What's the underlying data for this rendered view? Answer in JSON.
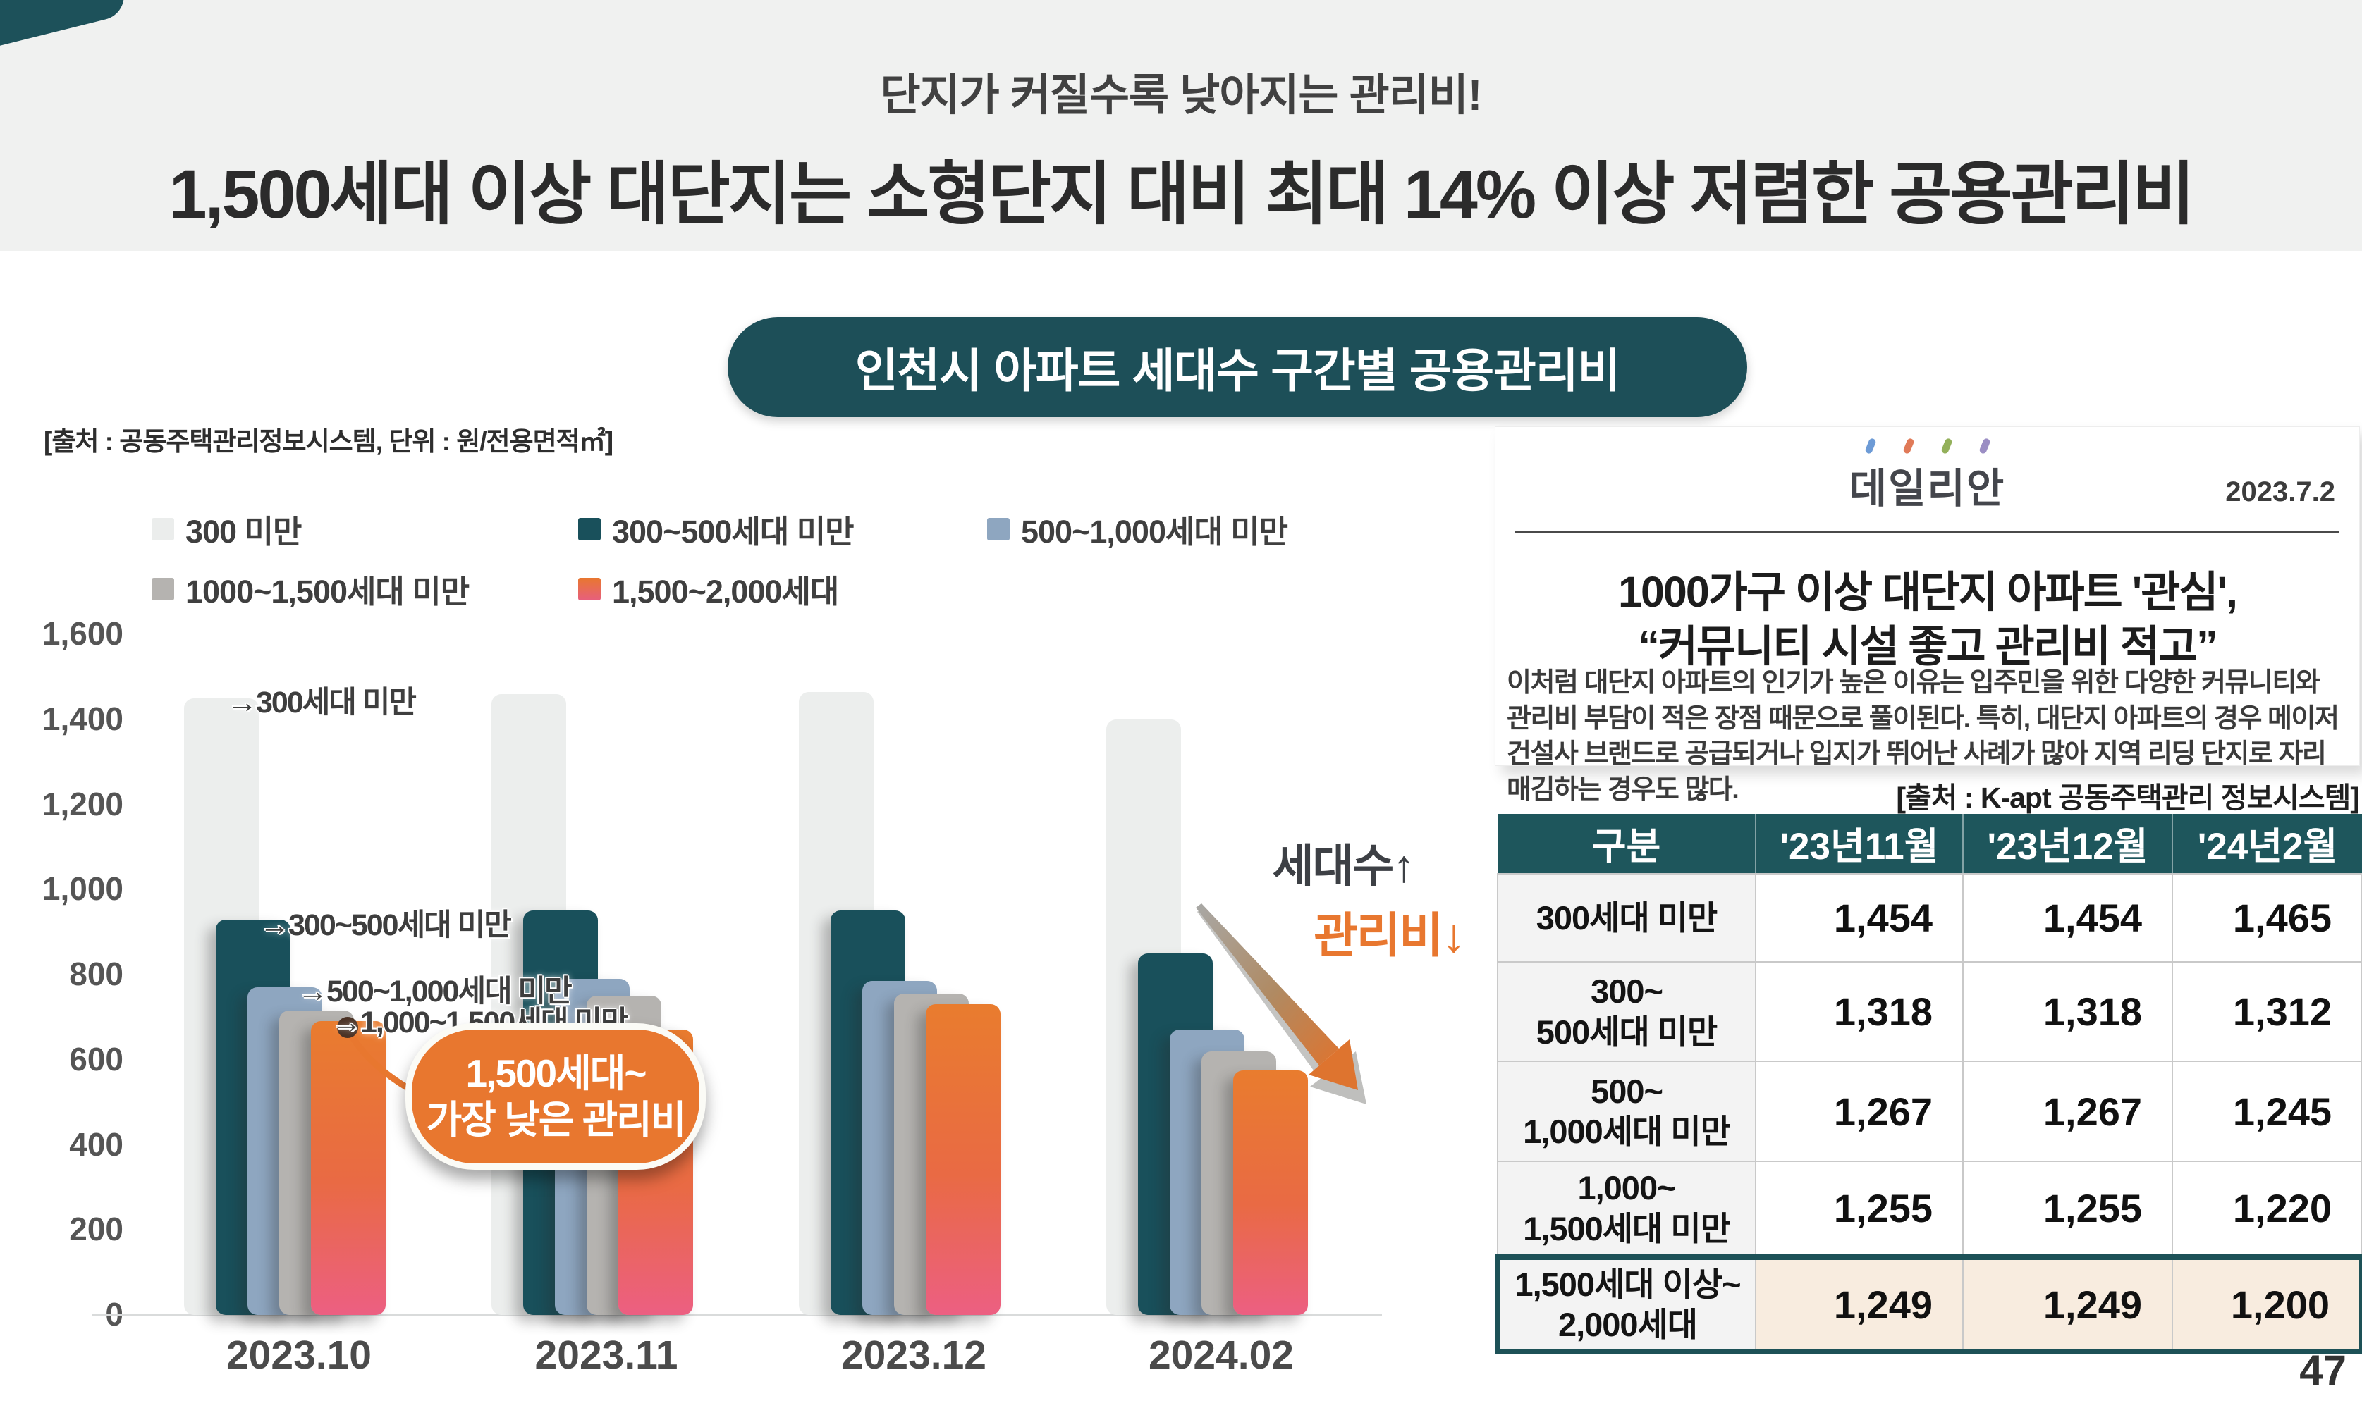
{
  "slide": {
    "subtitle": "단지가 커질수록 낮아지는 관리비!",
    "title": "1,500세대 이상 대단지는 소형단지 대비 최대 14% 이상 저렴한 공용관리비",
    "section_badge": "인천시 아파트 세대수 구간별 공용관리비",
    "page_number": "47"
  },
  "chart": {
    "source_note": "[출처 : 공동주택관리정보시스템, 단위 : 원/전용면적㎡]",
    "y_ticks": [
      "1,600",
      "1,400",
      "1,200",
      "1,000",
      "800",
      "600",
      "400",
      "200",
      "0"
    ],
    "bar_annotations": [
      "→300세대 미만",
      "→300~500세대 미만",
      "→500~1,000세대 미만",
      "→1,000~1,500세대 미만"
    ],
    "callout": {
      "line1": "1,500세대~",
      "line2": "가장 낮은 관리비"
    },
    "trend_up_label": "세대수↑",
    "trend_down_label": "관리비↓"
  },
  "chart_data": {
    "type": "bar",
    "title": "인천시 아파트 세대수 구간별 공용관리비",
    "ylabel": "원/전용면적㎡",
    "categories": [
      "2023.10",
      "2023.11",
      "2023.12",
      "2024.02"
    ],
    "series": [
      {
        "name": "300 미만",
        "color": "#ebedec",
        "values": [
          1450,
          1460,
          1465,
          1400
        ]
      },
      {
        "name": "300~500세대 미만",
        "color": "#19505b",
        "values": [
          930,
          950,
          950,
          850
        ]
      },
      {
        "name": "500~1,000세대 미만",
        "color": "#8ea6c0",
        "values": [
          770,
          790,
          785,
          670
        ]
      },
      {
        "name": "1000~1,500세대 미만",
        "color": "#b5b3b0",
        "values": [
          715,
          750,
          755,
          620
        ]
      },
      {
        "name": "1,500~2,000세대",
        "color": "#e8772f",
        "color2": "#e75f7e",
        "values": [
          690,
          670,
          730,
          575
        ]
      }
    ],
    "ylim": [
      0,
      1600
    ],
    "y_tick_step": 200,
    "grid": false,
    "legend_position": "top"
  },
  "news": {
    "logo": "데일리안",
    "date": "2023.7.2",
    "headline_line1": "1000가구 이상 대단지 아파트 '관심',",
    "headline_line2": "“커뮤니티 시설 좋고 관리비 적고”",
    "body": "이처럼 대단지 아파트의 인기가 높은 이유는 입주민을 위한 다양한 커뮤니티와 관리비 부담이 적은 장점 때문으로 풀이된다. 특히, 대단지 아파트의 경우 메이저 건설사 브랜드로 공급되거나 입지가 뛰어난 사례가 많아 지역 리딩 단지로 자리매김하는 경우도 많다."
  },
  "table": {
    "source_note": "[출처 : K-apt 공동주택관리 정보시스템]",
    "columns": [
      "구분",
      "'23년11월",
      "'23년12월",
      "'24년2월"
    ],
    "rows": [
      {
        "label": "300세대 미만",
        "values": [
          "1,454",
          "1,454",
          "1,465"
        ],
        "highlight": false
      },
      {
        "label": "300~\n500세대 미만",
        "values": [
          "1,318",
          "1,318",
          "1,312"
        ],
        "highlight": false
      },
      {
        "label": "500~\n1,000세대 미만",
        "values": [
          "1,267",
          "1,267",
          "1,245"
        ],
        "highlight": false
      },
      {
        "label": "1,000~\n1,500세대 미만",
        "values": [
          "1,255",
          "1,255",
          "1,220"
        ],
        "highlight": false
      },
      {
        "label": "1,500세대 이상~\n2,000세대",
        "values": [
          "1,249",
          "1,249",
          "1,200"
        ],
        "highlight": true
      }
    ]
  },
  "colors": {
    "accent_teal": "#1d515a",
    "accent_orange": "#e8772f",
    "header_band": "#f0f1f0",
    "table_highlight_bg": "#f8ecdf"
  }
}
